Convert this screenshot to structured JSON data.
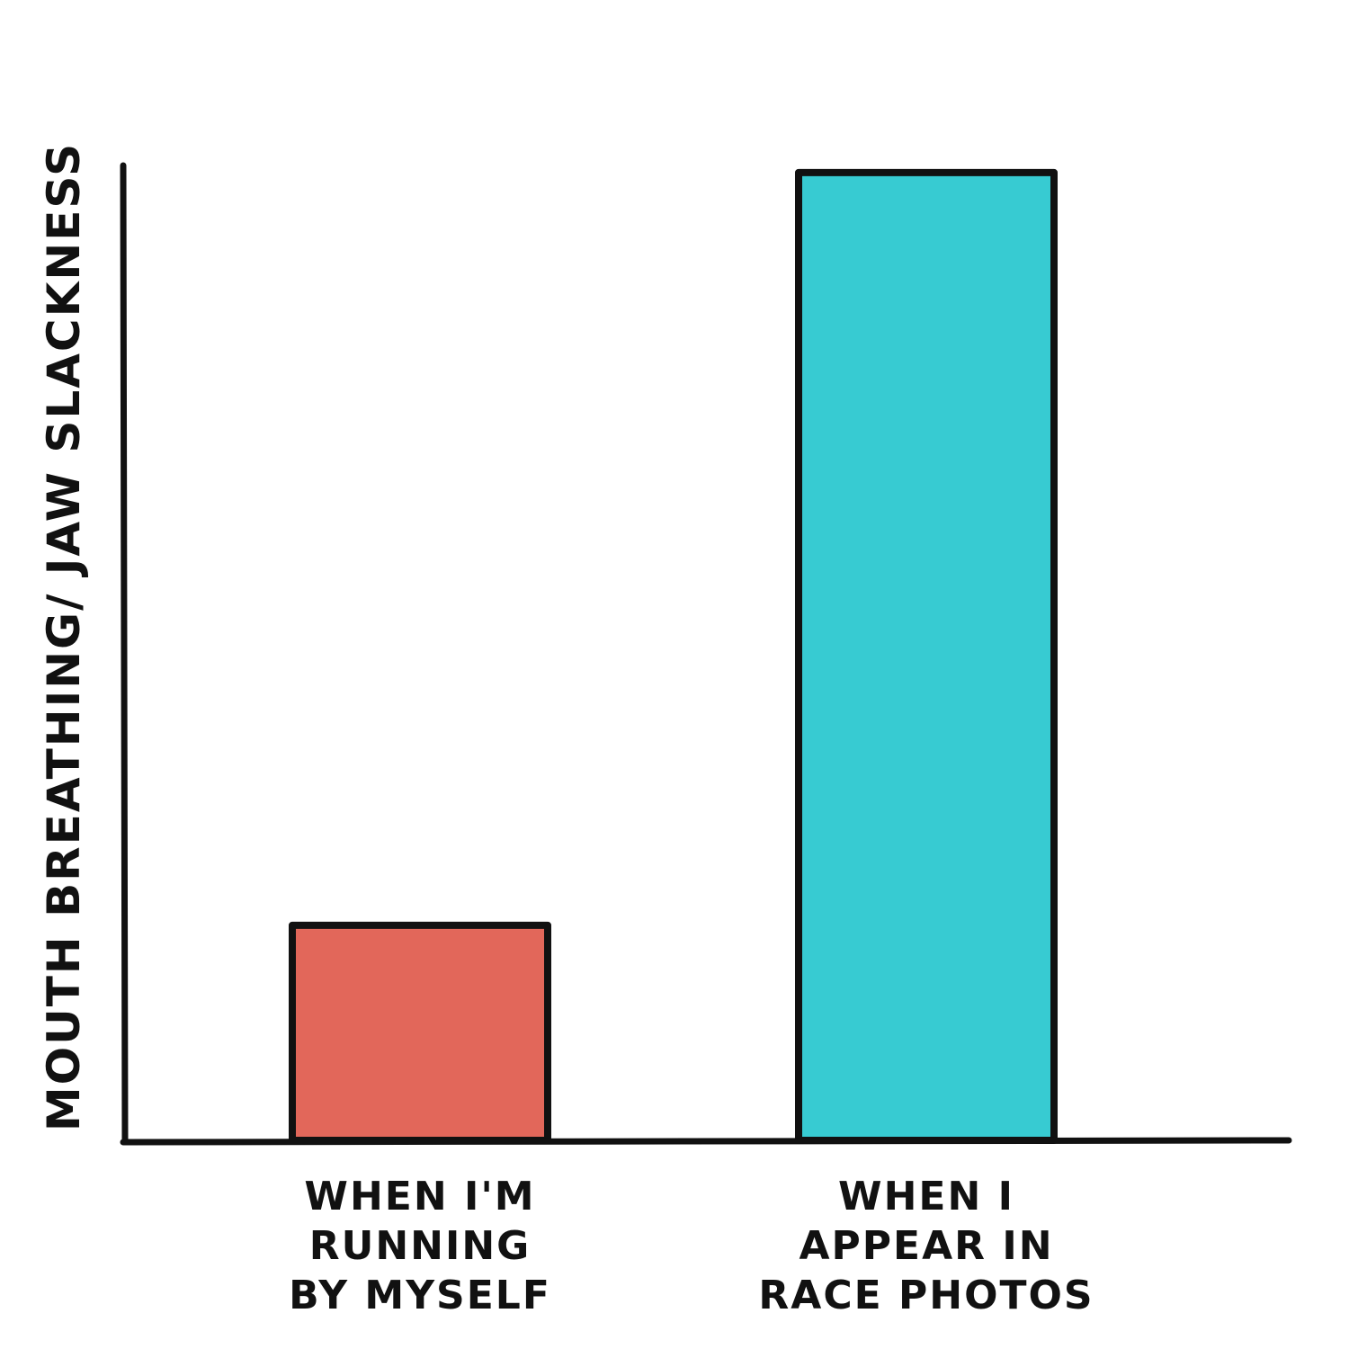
{
  "chart_data": {
    "type": "bar",
    "title": "",
    "ylabel": "MOUTH BREATHING/ JAW SLACKNESS",
    "xlabel": "",
    "categories": [
      [
        "WHEN I'M",
        "RUNNING",
        "BY MYSELF"
      ],
      [
        "WHEN I",
        "APPEAR IN",
        "RACE PHOTOS"
      ]
    ],
    "values": [
      22,
      99
    ],
    "ylim": [
      0,
      100
    ],
    "colors": [
      "#E2675A",
      "#37CBD2"
    ],
    "outline_color": "#111111",
    "grid": false,
    "legend": "none",
    "y_ticks": "none"
  }
}
